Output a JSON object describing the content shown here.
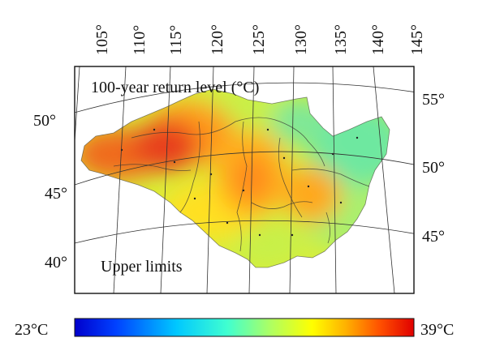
{
  "map": {
    "title": "100-year return level (°C)",
    "note": "Upper limits",
    "lon_ticks": [
      "105°",
      "110°",
      "115°",
      "120°",
      "125°",
      "130°",
      "135°",
      "140°",
      "145°"
    ],
    "lat_ticks_left": [
      "50°",
      "45°",
      "40°"
    ],
    "lat_ticks_right": [
      "55°",
      "50°",
      "45°"
    ],
    "colorbar": {
      "min_label": "23°C",
      "max_label": "39°C",
      "min": 23,
      "max": 39,
      "colors": [
        "#0000cc",
        "#0040ff",
        "#00c8ff",
        "#40ffd0",
        "#b0ff60",
        "#ffff00",
        "#ffb000",
        "#ff5000",
        "#e00000"
      ]
    },
    "colors": {
      "hot": "#e8401a",
      "warm": "#ff8c1a",
      "mid": "#ffd21a",
      "cool": "#cdf040",
      "cold": "#6ee8a0",
      "frame": "#111111",
      "grid": "#333333"
    }
  }
}
